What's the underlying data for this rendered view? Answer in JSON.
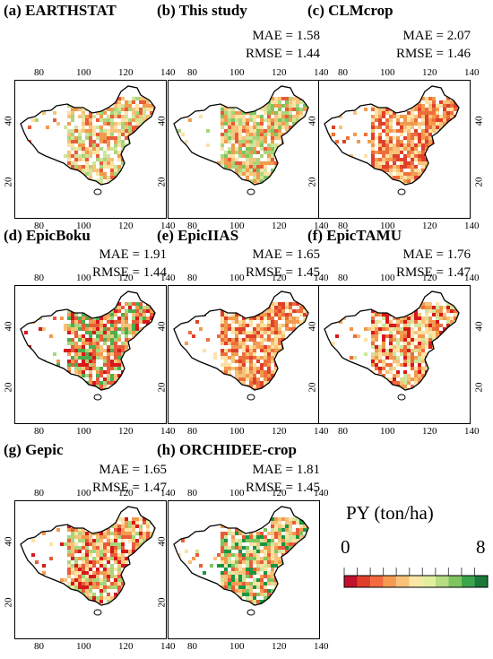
{
  "figure": {
    "panels": [
      {
        "id": "a",
        "title": "(a) EARTHSTAT",
        "mae": "",
        "rmse": "",
        "palette": [
          "#e85c3a",
          "#f29a4d",
          "#f7c27a",
          "#fde2a4",
          "#cfe59a",
          "#a8d67a"
        ]
      },
      {
        "id": "b",
        "title": "(b) This study",
        "mae": "MAE = 1.58",
        "rmse": "RMSE = 1.44",
        "palette": [
          "#e85c3a",
          "#f29a4d",
          "#f7c27a",
          "#fde2a4",
          "#cfe59a",
          "#a8d67a",
          "#7fc45f"
        ]
      },
      {
        "id": "c",
        "title": "(c) CLMcrop",
        "mae": "MAE = 2.07",
        "rmse": "RMSE = 1.46",
        "palette": [
          "#e0402a",
          "#ee6e3a",
          "#f29a4d",
          "#f7c27a",
          "#fde2a4"
        ]
      },
      {
        "id": "d",
        "title": "(d) EpicBoku",
        "mae": "MAE = 1.91",
        "rmse": "RMSE = 1.44",
        "palette": [
          "#d7191c",
          "#e85c3a",
          "#f29a4d",
          "#f7c27a",
          "#a8d67a",
          "#4cae4c"
        ]
      },
      {
        "id": "e",
        "title": "(e) EpicIIAS",
        "mae": "MAE = 1.65",
        "rmse": "RMSE = 1.45",
        "palette": [
          "#e0402a",
          "#ee6e3a",
          "#f29a4d",
          "#f7c27a",
          "#fde2a4"
        ]
      },
      {
        "id": "f",
        "title": "(f) EpicTAMU",
        "mae": "MAE = 1.76",
        "rmse": "RMSE = 1.47",
        "palette": [
          "#d7191c",
          "#ee6e3a",
          "#f29a4d",
          "#f7c27a",
          "#fde2a4",
          "#cfe59a"
        ]
      },
      {
        "id": "g",
        "title": "(g) Gepic",
        "mae": "MAE = 1.65",
        "rmse": "RMSE = 1.47",
        "palette": [
          "#d7191c",
          "#e85c3a",
          "#f29a4d",
          "#f7c27a",
          "#fde2a4",
          "#a8d67a"
        ]
      },
      {
        "id": "h",
        "title": "(h) ORCHIDEE-crop",
        "mae": "MAE = 1.81",
        "rmse": "RMSE = 1.45",
        "palette": [
          "#e85c3a",
          "#f29a4d",
          "#f7c27a",
          "#fde2a4",
          "#cfe59a",
          "#7fc45f",
          "#1a9641"
        ]
      }
    ],
    "x_ticks": [
      "80",
      "100",
      "120",
      "140"
    ],
    "y_ticks": [
      "40",
      "20"
    ],
    "legend": {
      "title": "PY (ton/ha)",
      "min_label": "0",
      "max_label": "8",
      "colors": [
        "#c2102e",
        "#e0402a",
        "#f26a3d",
        "#f59a52",
        "#f8c27a",
        "#fbe6a6",
        "#e3ef9e",
        "#b7dd82",
        "#7fc45f",
        "#3aa54b",
        "#1b7a3a"
      ]
    }
  }
}
